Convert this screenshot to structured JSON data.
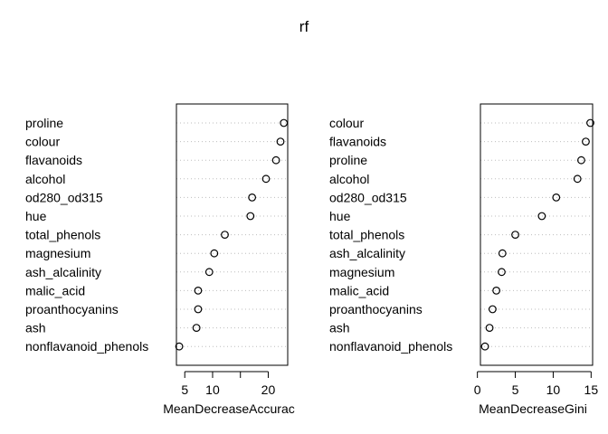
{
  "chart_data": [
    {
      "type": "scatter",
      "title": "rf",
      "xlabel": "MeanDecreaseAccurac",
      "ylabel": "",
      "xlim": [
        3.5,
        23.5
      ],
      "xticks": [
        5,
        10,
        15,
        20
      ],
      "xtick_labels": [
        "5",
        "10",
        "",
        "20"
      ],
      "grid": "dotted horizontal",
      "categories": [
        "proline",
        "colour",
        "flavanoids",
        "alcohol",
        "od280_od315",
        "hue",
        "total_phenols",
        "magnesium",
        "ash_alcalinity",
        "malic_acid",
        "proanthocyanins",
        "ash",
        "nonflavanoid_phenols"
      ],
      "values": [
        22.8,
        22.2,
        21.4,
        19.6,
        17.1,
        16.8,
        12.2,
        10.3,
        9.4,
        7.4,
        7.4,
        7.1,
        4.0
      ]
    },
    {
      "type": "scatter",
      "title": "",
      "xlabel": "MeanDecreaseGini",
      "ylabel": "",
      "xlim": [
        0.4,
        15.2
      ],
      "xticks": [
        0,
        5,
        10,
        15
      ],
      "xtick_labels": [
        "0",
        "5",
        "10",
        "15"
      ],
      "grid": "dotted horizontal",
      "categories": [
        "colour",
        "flavanoids",
        "proline",
        "alcohol",
        "od280_od315",
        "hue",
        "total_phenols",
        "ash_alcalinity",
        "magnesium",
        "malic_acid",
        "proanthocyanins",
        "ash",
        "nonflavanoid_phenols"
      ],
      "values": [
        14.9,
        14.3,
        13.7,
        13.2,
        10.4,
        8.5,
        5.0,
        3.3,
        3.2,
        2.5,
        2.0,
        1.6,
        1.0
      ]
    }
  ]
}
